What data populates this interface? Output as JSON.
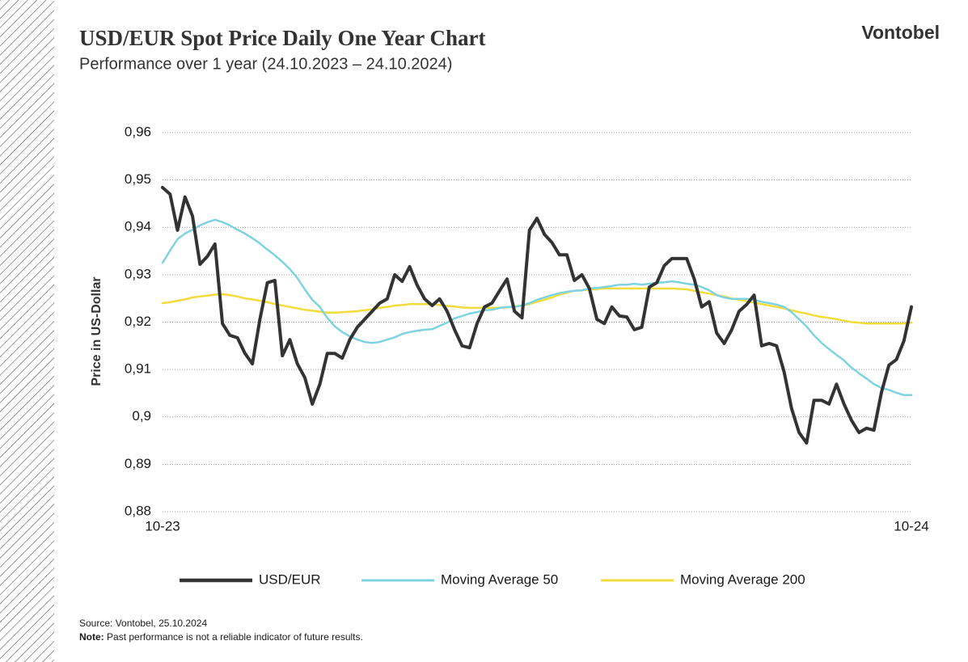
{
  "logo": "Vontobel",
  "chart_data": {
    "type": "line",
    "title": "USD/EUR Spot Price Daily One Year Chart",
    "subtitle": "Performance over 1 year (24.10.2023 – 24.10.2024)",
    "y_label": "Price in US-Dollar",
    "source": "Source: Vontobel,  25.10.2024",
    "note_label": "Note:",
    "note": "Past performance  is not a reliable indicator of future results.",
    "categories": [
      "10-23",
      null,
      null,
      null,
      null,
      null,
      null,
      null,
      null,
      null,
      null,
      null,
      null,
      null,
      null,
      null,
      null,
      null,
      null,
      null,
      null,
      null,
      null,
      null,
      null,
      null,
      null,
      null,
      null,
      null,
      null,
      null,
      null,
      null,
      null,
      null,
      null,
      null,
      null,
      null,
      null,
      null,
      null,
      null,
      null,
      null,
      null,
      null,
      null,
      null,
      null,
      null,
      null,
      null,
      null,
      null,
      null,
      null,
      null,
      null,
      null,
      null,
      null,
      null,
      null,
      null,
      null,
      null,
      null,
      null,
      null,
      null,
      null,
      null,
      null,
      null,
      null,
      null,
      null,
      null,
      null,
      null,
      null,
      null,
      null,
      null,
      null,
      null,
      null,
      null,
      null,
      null,
      null,
      null,
      null,
      null,
      null,
      null,
      null,
      null,
      "10-24"
    ],
    "series": [
      {
        "name": "USD/EUR",
        "color": "#333333",
        "width": 4,
        "values": [
          0.9484,
          0.947,
          0.9394,
          0.9464,
          0.9424,
          0.9322,
          0.9339,
          0.9365,
          0.9197,
          0.9172,
          0.9167,
          0.9134,
          0.9112,
          0.9206,
          0.9283,
          0.9288,
          0.9129,
          0.9163,
          0.9112,
          0.9083,
          0.9027,
          0.9069,
          0.9134,
          0.9134,
          0.9124,
          0.9163,
          0.9189,
          0.9206,
          0.9223,
          0.924,
          0.9249,
          0.93,
          0.9286,
          0.9317,
          0.9278,
          0.9249,
          0.9235,
          0.9249,
          0.9223,
          0.9184,
          0.915,
          0.9146,
          0.9197,
          0.9232,
          0.924,
          0.9266,
          0.9291,
          0.9223,
          0.9209,
          0.9394,
          0.9419,
          0.9385,
          0.9368,
          0.9342,
          0.9342,
          0.9288,
          0.93,
          0.9271,
          0.9206,
          0.9197,
          0.9232,
          0.9213,
          0.9211,
          0.9184,
          0.9189,
          0.9274,
          0.9283,
          0.9319,
          0.9334,
          0.9334,
          0.9334,
          0.9291,
          0.9232,
          0.9243,
          0.9177,
          0.9155,
          0.9184,
          0.9223,
          0.9237,
          0.9257,
          0.915,
          0.9155,
          0.915,
          0.9095,
          0.9018,
          0.8967,
          0.8945,
          0.9035,
          0.9035,
          0.9027,
          0.9069,
          0.9027,
          0.8993,
          0.8967,
          0.8976,
          0.8972,
          0.9052,
          0.9109,
          0.9121,
          0.916,
          0.9232
        ]
      },
      {
        "name": "Moving Average 50",
        "color": "#7fd3e0",
        "width": 2.5,
        "values": [
          0.9325,
          0.9351,
          0.9375,
          0.9387,
          0.9395,
          0.9404,
          0.9411,
          0.9416,
          0.9411,
          0.9404,
          0.9395,
          0.9387,
          0.9377,
          0.9366,
          0.9353,
          0.9341,
          0.9327,
          0.9312,
          0.9293,
          0.9269,
          0.9247,
          0.9232,
          0.9209,
          0.9191,
          0.9179,
          0.917,
          0.9163,
          0.9158,
          0.9156,
          0.9158,
          0.9163,
          0.9168,
          0.9175,
          0.9179,
          0.9182,
          0.9184,
          0.9185,
          0.9192,
          0.9199,
          0.9208,
          0.9213,
          0.9218,
          0.9221,
          0.9225,
          0.9226,
          0.923,
          0.9232,
          0.9232,
          0.9235,
          0.924,
          0.9247,
          0.9252,
          0.9257,
          0.9261,
          0.9264,
          0.9266,
          0.9267,
          0.9271,
          0.9272,
          0.9274,
          0.9276,
          0.9279,
          0.9279,
          0.9281,
          0.9279,
          0.9281,
          0.9283,
          0.9284,
          0.9286,
          0.9284,
          0.9281,
          0.9279,
          0.9274,
          0.9267,
          0.9257,
          0.9252,
          0.9249,
          0.9249,
          0.9249,
          0.9247,
          0.9243,
          0.924,
          0.9237,
          0.9232,
          0.9221,
          0.9206,
          0.9191,
          0.9172,
          0.9156,
          0.9143,
          0.9131,
          0.9119,
          0.9104,
          0.9092,
          0.9081,
          0.9069,
          0.9061,
          0.9057,
          0.9051,
          0.9046,
          0.9046
        ]
      },
      {
        "name": "Moving Average 200",
        "color": "#f2dc3c",
        "width": 2.5,
        "values": [
          0.924,
          0.9242,
          0.9245,
          0.9248,
          0.9252,
          0.9254,
          0.9256,
          0.9258,
          0.9259,
          0.9257,
          0.9254,
          0.925,
          0.9248,
          0.9245,
          0.9242,
          0.9238,
          0.9235,
          0.9232,
          0.9229,
          0.9226,
          0.9224,
          0.9222,
          0.922,
          0.922,
          0.9221,
          0.9222,
          0.9223,
          0.9225,
          0.9227,
          0.923,
          0.9232,
          0.9235,
          0.9236,
          0.9238,
          0.9238,
          0.9238,
          0.9238,
          0.9236,
          0.9234,
          0.9233,
          0.9231,
          0.923,
          0.923,
          0.923,
          0.923,
          0.923,
          0.9231,
          0.9233,
          0.9235,
          0.9238,
          0.9243,
          0.9247,
          0.9252,
          0.9258,
          0.9262,
          0.9266,
          0.9267,
          0.9269,
          0.927,
          0.9271,
          0.9271,
          0.9271,
          0.9271,
          0.9271,
          0.9271,
          0.9271,
          0.9271,
          0.9271,
          0.9271,
          0.927,
          0.9269,
          0.9266,
          0.9263,
          0.926,
          0.9257,
          0.9254,
          0.925,
          0.9247,
          0.9244,
          0.9241,
          0.9238,
          0.9235,
          0.9232,
          0.9229,
          0.9225,
          0.9221,
          0.9218,
          0.9214,
          0.9211,
          0.9209,
          0.9206,
          0.9203,
          0.92,
          0.9199,
          0.9197,
          0.9197,
          0.9197,
          0.9197,
          0.9197,
          0.9197,
          0.9199
        ]
      }
    ],
    "ylim": [
      0.88,
      0.96
    ],
    "yticks": [
      {
        "value": 0.88,
        "label": "0,88"
      },
      {
        "value": 0.89,
        "label": "0,89"
      },
      {
        "value": 0.9,
        "label": "0,9"
      },
      {
        "value": 0.91,
        "label": "0,91"
      },
      {
        "value": 0.92,
        "label": "0,92"
      },
      {
        "value": 0.93,
        "label": "0,93"
      },
      {
        "value": 0.94,
        "label": "0,94"
      },
      {
        "value": 0.95,
        "label": "0,95"
      },
      {
        "value": 0.96,
        "label": "0,96"
      }
    ],
    "grid": true,
    "legend": "bottom"
  }
}
